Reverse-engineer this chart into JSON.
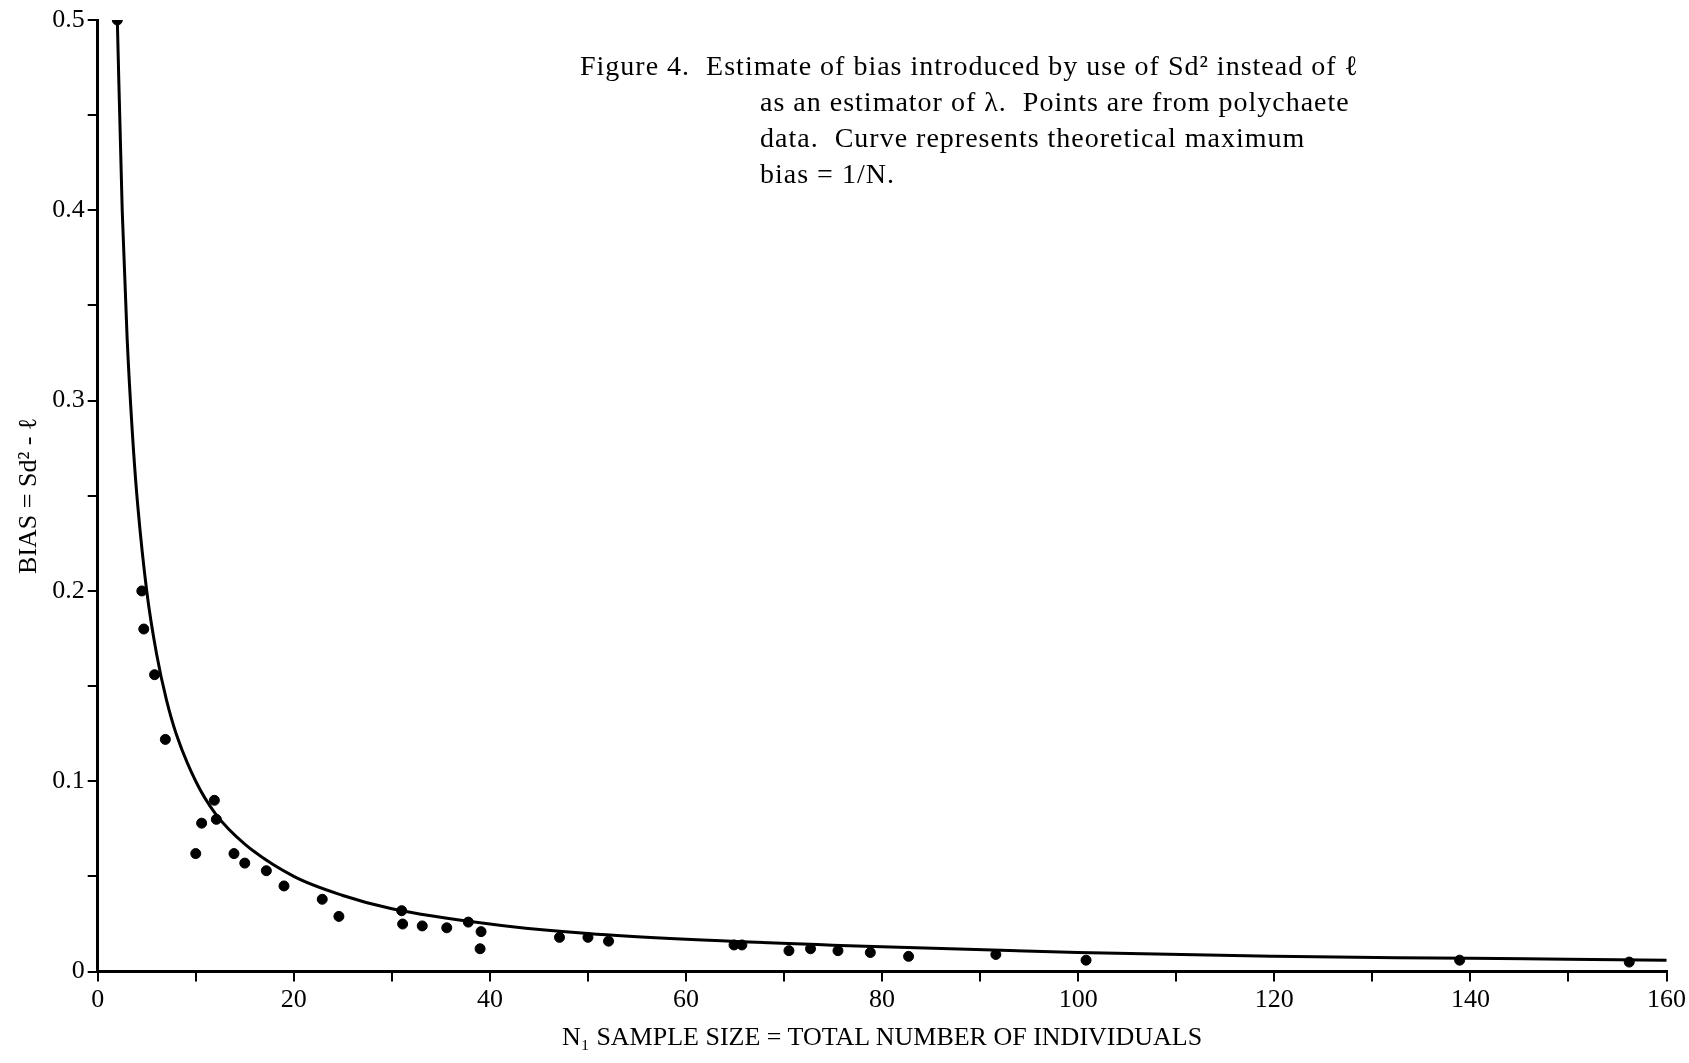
{
  "chart_data": {
    "type": "scatter",
    "xlabel": "N₁ SAMPLE SIZE = TOTAL NUMBER OF INDIVIDUALS",
    "ylabel": "BIAS = Sd² - ℓ",
    "annotations": [
      "Figure 4.  Estimate of bias introduced by use of Sd² instead of ℓ as an estimator of λ.  Points are from polychaete data.  Curve represents theoretical maximum bias = 1/N."
    ],
    "series": [
      {
        "type": "scatter",
        "color": "#000000",
        "marker": "circle",
        "x": [
          2,
          4.5,
          4.7,
          5.8,
          6.9,
          10,
          10.6,
          11.9,
          12.1,
          13.9,
          15,
          17.2,
          19,
          22.9,
          24.6,
          31,
          31.1,
          33.1,
          35.6,
          37.8,
          39,
          39.1,
          47.1,
          50,
          52.1,
          64.9,
          65.7,
          70.5,
          72.7,
          75.5,
          78.8,
          82.7,
          91.6,
          100.8,
          138.9,
          156.2
        ],
        "values": [
          0.5,
          0.2,
          0.18,
          0.156,
          0.122,
          0.062,
          0.078,
          0.09,
          0.08,
          0.062,
          0.057,
          0.053,
          0.045,
          0.038,
          0.029,
          0.032,
          0.025,
          0.024,
          0.023,
          0.026,
          0.012,
          0.021,
          0.018,
          0.018,
          0.016,
          0.014,
          0.014,
          0.011,
          0.012,
          0.011,
          0.01,
          0.008,
          0.009,
          0.006,
          0.006,
          0.005
        ]
      },
      {
        "type": "line",
        "color": "#000000",
        "marker": "none",
        "x": [
          2,
          2.5,
          3,
          3.5,
          4,
          5,
          6,
          7,
          8,
          10,
          12,
          15,
          20,
          25,
          30,
          40,
          50,
          60,
          80,
          100,
          120,
          140,
          160
        ],
        "values": [
          0.5,
          0.4,
          0.333,
          0.286,
          0.25,
          0.2,
          0.167,
          0.143,
          0.125,
          0.1,
          0.083,
          0.067,
          0.05,
          0.04,
          0.033,
          0.025,
          0.02,
          0.017,
          0.013,
          0.01,
          0.008,
          0.007,
          0.006
        ]
      }
    ],
    "xlim": [
      0,
      160
    ],
    "ylim": [
      0,
      0.5
    ],
    "xticks": [
      0,
      {
        "value": 10,
        "label": null
      },
      20,
      {
        "value": 30,
        "label": null
      },
      40,
      {
        "value": 50,
        "label": null
      },
      60,
      {
        "value": 70,
        "label": null
      },
      80,
      {
        "value": 90,
        "label": null
      },
      100,
      {
        "value": 110,
        "label": null
      },
      120,
      {
        "value": 130,
        "label": null
      },
      140,
      {
        "value": 150,
        "label": null
      },
      160
    ],
    "yticks": [
      0,
      {
        "value": 0.05,
        "label": null
      },
      0.1,
      {
        "value": 0.15,
        "label": null
      },
      0.2,
      {
        "value": 0.25,
        "label": null
      },
      0.3,
      {
        "value": 0.35,
        "label": null
      },
      0.4,
      {
        "value": 0.45,
        "label": null
      },
      0.5
    ],
    "legend": false
  }
}
